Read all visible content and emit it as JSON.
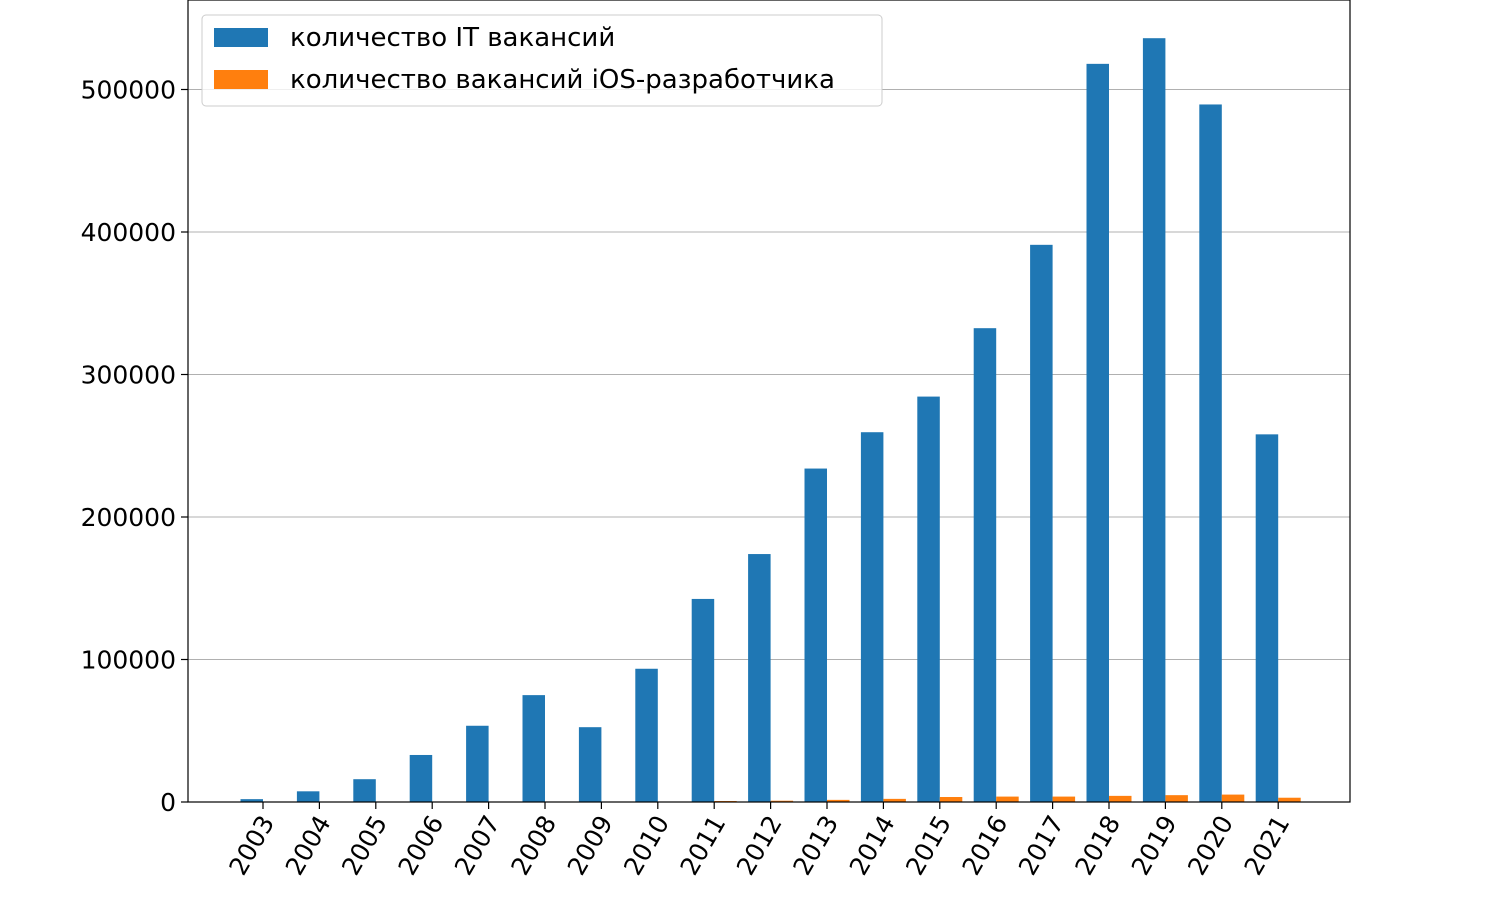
{
  "chart_data": {
    "type": "bar",
    "categories": [
      "2003",
      "2004",
      "2005",
      "2006",
      "2007",
      "2008",
      "2009",
      "2010",
      "2011",
      "2012",
      "2013",
      "2014",
      "2015",
      "2016",
      "2017",
      "2018",
      "2019",
      "2020",
      "2021"
    ],
    "series": [
      {
        "name": "количество IT вакансий",
        "color": "#1f77b4",
        "values": [
          2000,
          7500,
          16000,
          33000,
          53500,
          75000,
          52500,
          93500,
          142500,
          174000,
          234000,
          259500,
          284500,
          332500,
          391000,
          518000,
          536000,
          489500,
          258000
        ]
      },
      {
        "name": "количество вакансий iOS-разработчика",
        "color": "#ff7f0e",
        "values": [
          0,
          0,
          0,
          0,
          0,
          0,
          0,
          0,
          700,
          900,
          1500,
          2200,
          3500,
          3800,
          3800,
          4300,
          4800,
          5200,
          3000
        ]
      }
    ],
    "yticks": [
      "0",
      "100000",
      "200000",
      "300000",
      "400000",
      "500000"
    ],
    "ylim": [
      0,
      560000
    ],
    "grid": "y",
    "legend": "top-left",
    "title": "",
    "xlabel": "",
    "ylabel": ""
  }
}
